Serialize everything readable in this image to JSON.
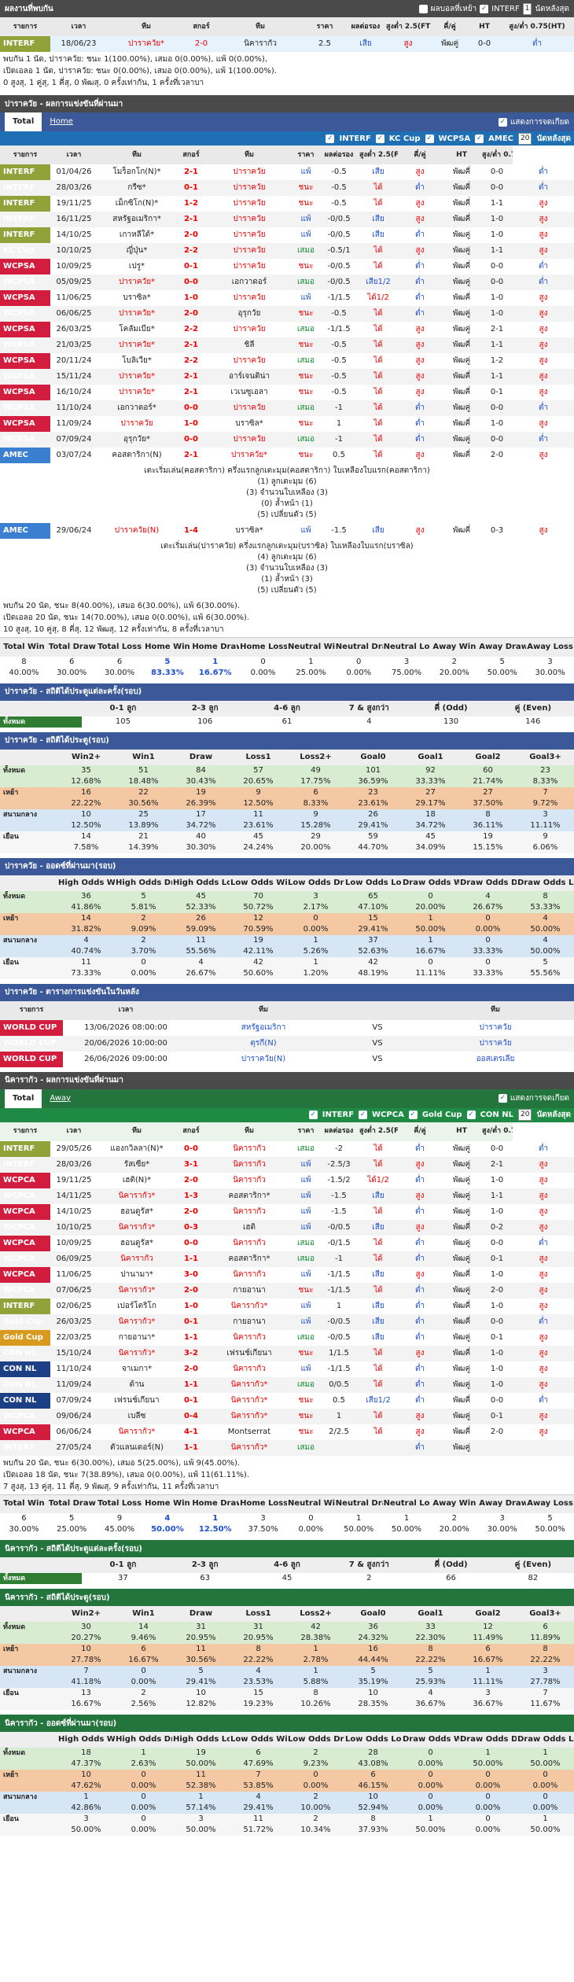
{
  "h2h": {
    "title": "ผลงานที่พบกัน",
    "options": [
      "ผลบอลที่เหย้า",
      "INTERF"
    ],
    "select": "1",
    "same": "นัดหลังสุด",
    "headers": [
      "รายการ",
      "เวลา",
      "ทีม",
      "สกอร์",
      "ทีม",
      "ราคา",
      "ผลต่อรอง",
      "สูงต่ำ 2.5(FT)",
      "คี่/คู่",
      "HT",
      "สูง/ต่ำ 0.75(HT)"
    ],
    "rows": [
      [
        "INTERF",
        "18/06/23",
        "ปาราควัย*",
        "2-0",
        "นิคารากัว",
        "2.5",
        "เสีย",
        "สูง",
        "พัฒคู่",
        "0-0",
        "ต่ำ"
      ]
    ],
    "summary": [
      "พบกัน 1 นัด, ปาราควัย: ชนะ 1(100.00%), เสมอ 0(0.00%), แพ้ 0(0.00%),",
      "เปิดเอลอ 1 นัด, ปาราควัย: ชนะ 0(0.00%), เสมอ 0(0.00%), แพ้ 1(100.00%).",
      "0 สูงสุ, 1 คู่สุ, 1 คี่สุ, 0 พัฒสุ, 0 ครั้งเท่ากัน, 1 ครั้งที่เวลาบา"
    ]
  },
  "home": {
    "bar": "ปาราควัย - ผลการแข่งขันที่ผ่านมา",
    "tab1": "Total",
    "tab2": "Home",
    "same_label": "แสดงการจดเกียด",
    "filters": [
      "INTERF",
      "KC Cup",
      "WCPSA",
      "AMEC"
    ],
    "filter_count": "20",
    "filter_last": "นัดหลังสุด",
    "headers": [
      "รายการ",
      "เวลา",
      "ทีม",
      "สกอร์",
      "ทีม",
      "ราคา",
      "ผลต่อรอง",
      "สูงต่ำ 2.5(FT)",
      "คี่/คู่",
      "HT",
      "สูง/ต่ำ 0.75(HT)"
    ],
    "rows": [
      [
        "INTERF",
        "01/04/26",
        "โมร็อกโก(N)*",
        "2-1",
        "ปาราควัย",
        "แพ้",
        "-0.5",
        "เสีย",
        "สูง",
        "พัฒคี่",
        "0-0",
        "ต่ำ"
      ],
      [
        "INTERF",
        "28/03/26",
        "กรีซ*",
        "0-1",
        "ปาราควัย",
        "ชนะ",
        "-0.5",
        "ได้",
        "ต่ำ",
        "พัฒคี่",
        "0-0",
        "ต่ำ"
      ],
      [
        "INTERF",
        "19/11/25",
        "เม็กซิโก(N)*",
        "1-2",
        "ปาราควัย",
        "ชนะ",
        "-0.5",
        "ได้",
        "สูง",
        "พัฒคี่",
        "1-1",
        "สูง"
      ],
      [
        "INTERF",
        "16/11/25",
        "สหรัฐอเมริกา*",
        "2-1",
        "ปาราควัย",
        "แพ้",
        "-0/0.5",
        "เสีย",
        "สูง",
        "พัฒคี่",
        "1-0",
        "สูง"
      ],
      [
        "INTERF",
        "14/10/25",
        "เกาหลีใต้*",
        "2-0",
        "ปาราควัย",
        "แพ้",
        "-0/0.5",
        "เสีย",
        "ต่ำ",
        "พัฒคู่",
        "1-0",
        "สูง"
      ],
      [
        "KC Cup",
        "10/10/25",
        "ญี่ปุ่น*",
        "2-2",
        "ปาราควัย",
        "เสมอ",
        "-0.5/1",
        "ได้",
        "สูง",
        "พัฒคู่",
        "1-1",
        "สูง"
      ],
      [
        "WCPSA",
        "10/09/25",
        "เปรู*",
        "0-1",
        "ปาราควัย",
        "ชนะ",
        "-0/0.5",
        "ได้",
        "ต่ำ",
        "พัฒคี่",
        "0-0",
        "ต่ำ"
      ],
      [
        "WCPSA",
        "05/09/25",
        "ปาราควัย*",
        "0-0",
        "เอกวาดอร์",
        "เสมอ",
        "-0/0.5",
        "เสีย1/2",
        "ต่ำ",
        "พัฒคู่",
        "0-0",
        "ต่ำ"
      ],
      [
        "WCPSA",
        "11/06/25",
        "บราซิล*",
        "1-0",
        "ปาราควัย",
        "แพ้",
        "-1/1.5",
        "ได้1/2",
        "ต่ำ",
        "พัฒคี่",
        "1-0",
        "สูง"
      ],
      [
        "WCPSA",
        "06/06/25",
        "ปาราควัย*",
        "2-0",
        "อุรุกวัย",
        "ชนะ",
        "-0.5",
        "ได้",
        "ต่ำ",
        "พัฒคู่",
        "1-0",
        "สูง"
      ],
      [
        "WCPSA",
        "26/03/25",
        "โคลัมเบีย*",
        "2-2",
        "ปาราควัย",
        "เสมอ",
        "-1/1.5",
        "ได้",
        "สูง",
        "พัฒคู่",
        "2-1",
        "สูง"
      ],
      [
        "WCPSA",
        "21/03/25",
        "ปาราควัย*",
        "2-1",
        "ชิลี",
        "ชนะ",
        "-0.5",
        "ได้",
        "สูง",
        "พัฒคี่",
        "1-1",
        "สูง"
      ],
      [
        "WCPSA",
        "20/11/24",
        "โบลิเวีย*",
        "2-2",
        "ปาราควัย",
        "เสมอ",
        "-0.5",
        "ได้",
        "สูง",
        "พัฒคู่",
        "1-2",
        "สูง"
      ],
      [
        "WCPSA",
        "15/11/24",
        "ปาราควัย*",
        "2-1",
        "อาร์เจนติน่า",
        "ชนะ",
        "-0.5",
        "ได้",
        "สูง",
        "พัฒคี่",
        "1-1",
        "สูง"
      ],
      [
        "WCPSA",
        "16/10/24",
        "ปาราควัย*",
        "2-1",
        "เวเนซูเอลา",
        "ชนะ",
        "-0.5",
        "ได้",
        "สูง",
        "พัฒคี่",
        "0-1",
        "สูง"
      ],
      [
        "WCPSA",
        "11/10/24",
        "เอกวาดอร์*",
        "0-0",
        "ปาราควัย",
        "เสมอ",
        "-1",
        "ได้",
        "ต่ำ",
        "พัฒคู่",
        "0-0",
        "ต่ำ"
      ],
      [
        "WCPSA",
        "11/09/24",
        "ปาราควัย",
        "1-0",
        "บราซิล*",
        "ชนะ",
        "1",
        "ได้",
        "ต่ำ",
        "พัฒคี่",
        "1-0",
        "สูง"
      ],
      [
        "WCPSA",
        "07/09/24",
        "อุรุกวัย*",
        "0-0",
        "ปาราควัย",
        "เสมอ",
        "-1",
        "ได้",
        "ต่ำ",
        "พัฒคู่",
        "0-0",
        "ต่ำ"
      ],
      [
        "AMEC",
        "03/07/24",
        "คอสตาริกา(N)",
        "2-1",
        "ปาราควัย*",
        "ชนะ",
        "0.5",
        "ได้",
        "สูง",
        "พัฒคี่",
        "2-0",
        "สูง"
      ]
    ],
    "amec_note": [
      "เตะเริ่มเล่น(คอสตาริกา) ครึ่งแรกลูกเตะมุม(คอสตาริกา) ใบเหลืองใบแรก(คอสตาริกา)",
      "(1) ลูกเตะมุม (6)",
      "(3) จำนวนใบเหลือง (3)",
      "(0) ล้ำหน้า (1)",
      "(5) เปลี่ยนตัว (5)"
    ],
    "row2": [
      "AMEC",
      "29/06/24",
      "ปาราควัย(N)",
      "1-4",
      "บราซิล*",
      "แพ้",
      "-1.5",
      "เสีย",
      "สูง",
      "พัฒคี่",
      "0-3",
      "สูง"
    ],
    "amec_note2": [
      "เตะเริ่มเล่น(ปาราควัย) ครึ่งแรกลูกเตะมุม(บราซิล) ใบเหลืองใบแรก(บราซิล)",
      "(4) ลูกเตะมุม (6)",
      "(3) จำนวนใบเหลือง (3)",
      "(1) ล้ำหน้า (3)",
      "(5) เปลี่ยนตัว (5)"
    ],
    "summary": [
      "พบกัน 20 นัด, ชนะ 8(40.00%), เสมอ 6(30.00%), แพ้ 6(30.00%).",
      "เปิดเอลอ 20 นัด, ชนะ 14(70.00%), เสมอ 0(0.00%), แพ้ 6(30.00%).",
      "10 สูงสุ, 10 คู่สุ, 8 คี่สุ, 12 พัฒสุ, 12 ครั้งเท่ากัน, 8 ครั้งที่เวลาบา"
    ],
    "twd_head": [
      "Total Win",
      "Total Draw",
      "Total Loss",
      "Home Win",
      "Home Draw",
      "Home Loss",
      "Neutral Win",
      "Neutral Draw",
      "Neutral Loss",
      "Away Win",
      "Away Draw",
      "Away Loss"
    ],
    "twd_vals": [
      "8",
      "6",
      "6",
      "5",
      "1",
      "0",
      "1",
      "0",
      "3",
      "2",
      "5",
      "3"
    ],
    "twd_pct": [
      "40.00%",
      "30.00%",
      "30.00%",
      "83.33%",
      "16.67%",
      "0.00%",
      "25.00%",
      "0.00%",
      "75.00%",
      "20.00%",
      "50.00%",
      "30.00%"
    ],
    "goals_bar": "ปาราควัย - สถิติได้ประตูแต่ละครั้ง(รอบ)",
    "goals_head": [
      "",
      "0-1 ลูก",
      "2-3 ลูก",
      "4-6 ลูก",
      "7 & สูงกว่า",
      "คี่ (Odd)",
      "คู่ (Even)"
    ],
    "goals_vals": [
      "ทั้งหมด",
      "105",
      "106",
      "61",
      "4",
      "130",
      "146"
    ],
    "stat_bar": "ปาราควัย - สถิติได้ประตู(รอบ)",
    "stat_head": [
      "",
      "Win2+",
      "Win1",
      "Draw",
      "Loss1",
      "Loss2+",
      "Goal0",
      "Goal1",
      "Goal2",
      "Goal3+"
    ],
    "stat_rows": [
      [
        "ทั้งหมด",
        "35",
        "51",
        "84",
        "57",
        "49",
        "101",
        "92",
        "60",
        "23"
      ],
      [
        "",
        "12.68%",
        "18.48%",
        "30.43%",
        "20.65%",
        "17.75%",
        "36.59%",
        "33.33%",
        "21.74%",
        "8.33%"
      ],
      [
        "เหย้า",
        "16",
        "22",
        "19",
        "9",
        "6",
        "23",
        "27",
        "27",
        "7"
      ],
      [
        "",
        "22.22%",
        "30.56%",
        "26.39%",
        "12.50%",
        "8.33%",
        "23.61%",
        "29.17%",
        "37.50%",
        "9.72%"
      ],
      [
        "สนามกลาง",
        "10",
        "25",
        "17",
        "11",
        "9",
        "26",
        "18",
        "8",
        "3"
      ],
      [
        "",
        "12.50%",
        "13.89%",
        "34.72%",
        "23.61%",
        "15.28%",
        "29.41%",
        "34.72%",
        "36.11%",
        "11.11%"
      ],
      [
        "เยือน",
        "14",
        "21",
        "40",
        "45",
        "29",
        "59",
        "45",
        "19",
        "9"
      ],
      [
        "",
        "7.58%",
        "14.39%",
        "30.30%",
        "24.24%",
        "20.00%",
        "44.70%",
        "34.09%",
        "15.15%",
        "6.06%"
      ]
    ],
    "odds_bar": "ปาราควัย - ออดซ์ที่ผ่านมา(รอบ)",
    "odds_head": [
      "",
      "High Odds Win",
      "High Odds Draw",
      "High Odds Loss",
      "Low Odds Win",
      "Low Odds Draw",
      "Low Odds Loss",
      "Draw Odds Win",
      "Draw Odds Draw",
      "Draw Odds Loss"
    ],
    "odds_rows": [
      [
        "ทั้งหมด",
        "36",
        "5",
        "45",
        "70",
        "3",
        "65",
        "0",
        "4",
        "8"
      ],
      [
        "",
        "41.86%",
        "5.81%",
        "52.33%",
        "50.72%",
        "2.17%",
        "47.10%",
        "20.00%",
        "26.67%",
        "53.33%"
      ],
      [
        "เหย้า",
        "14",
        "2",
        "26",
        "12",
        "0",
        "15",
        "1",
        "0",
        "4"
      ],
      [
        "",
        "31.82%",
        "9.09%",
        "59.09%",
        "70.59%",
        "0.00%",
        "29.41%",
        "50.00%",
        "0.00%",
        "50.00%"
      ],
      [
        "สนามกลาง",
        "4",
        "2",
        "11",
        "19",
        "1",
        "37",
        "1",
        "0",
        "4"
      ],
      [
        "",
        "40.74%",
        "3.70%",
        "55.56%",
        "42.11%",
        "5.26%",
        "52.63%",
        "16.67%",
        "33.33%",
        "50.00%"
      ],
      [
        "เยือน",
        "11",
        "0",
        "4",
        "42",
        "1",
        "42",
        "0",
        "0",
        "5"
      ],
      [
        "",
        "73.33%",
        "0.00%",
        "26.67%",
        "50.60%",
        "1.20%",
        "48.19%",
        "11.11%",
        "33.33%",
        "55.56%"
      ]
    ],
    "fix_bar": "ปาราควัย - ตารางการแข่งขันในวันหลัง",
    "fix_head": [
      "รายการ",
      "เวลา",
      "ทีม",
      "",
      "ทีม"
    ],
    "fix_rows": [
      [
        "WORLD CUP",
        "13/06/2026 08:00:00",
        "สหรัฐอเมริกา",
        "VS",
        "ปาราควัย"
      ],
      [
        "WORLD CUP",
        "20/06/2026 10:00:00",
        "ตุรกี(N)",
        "VS",
        "ปาราควัย"
      ],
      [
        "WORLD CUP",
        "26/06/2026 09:00:00",
        "ปาราควัย(N)",
        "VS",
        "ออสเตรเลีย"
      ]
    ]
  },
  "away": {
    "bar": "นิคารากัว - ผลการแข่งขันที่ผ่านมา",
    "tab1": "Total",
    "tab2": "Away",
    "same_label": "แสดงการจดเกียด",
    "filters": [
      "INTERF",
      "WCPCA",
      "Gold Cup",
      "CON NL"
    ],
    "filter_count": "20",
    "filter_last": "นัดหลังสุด",
    "rows": [
      [
        "INTERF",
        "29/05/26",
        "แองกวิลลา(N)*",
        "0-0",
        "นิคารากัว",
        "เสมอ",
        "-2",
        "ได้",
        "ต่ำ",
        "พัฒคู่",
        "0-0",
        "ต่ำ"
      ],
      [
        "INTERF",
        "28/03/26",
        "รัสเซีย*",
        "3-1",
        "นิคารากัว",
        "แพ้",
        "-2.5/3",
        "ได้",
        "สูง",
        "พัฒคู่",
        "2-1",
        "สูง"
      ],
      [
        "WCPCA",
        "19/11/25",
        "เฮติ(N)*",
        "2-0",
        "นิคารากัว",
        "แพ้",
        "-1.5/2",
        "ได้1/2",
        "ต่ำ",
        "พัฒคู่",
        "1-0",
        "สูง"
      ],
      [
        "WCPCA",
        "14/11/25",
        "นิคารากัว*",
        "1-3",
        "คอสตาริกา*",
        "แพ้",
        "-1.5",
        "เสีย",
        "สูง",
        "พัฒคู่",
        "1-1",
        "สูง"
      ],
      [
        "WCPCA",
        "14/10/25",
        "ฮอนดูรัส*",
        "2-0",
        "นิคารากัว",
        "แพ้",
        "-1.5",
        "ได้",
        "ต่ำ",
        "พัฒคู่",
        "1-0",
        "สูง"
      ],
      [
        "WCPCA",
        "10/10/25",
        "นิคารากัว*",
        "0-3",
        "เฮติ",
        "แพ้",
        "-0/0.5",
        "เสีย",
        "สูง",
        "พัฒคี่",
        "0-2",
        "สูง"
      ],
      [
        "WCPCA",
        "10/09/25",
        "ฮอนดูรัส*",
        "0-0",
        "นิคารากัว",
        "เสมอ",
        "-0/1.5",
        "ได้",
        "ต่ำ",
        "พัฒคู่",
        "0-0",
        "ต่ำ"
      ],
      [
        "WCPCA",
        "06/09/25",
        "นิคารากัว",
        "1-1",
        "คอสตาริกา*",
        "เสมอ",
        "-1",
        "ได้",
        "ต่ำ",
        "พัฒคู่",
        "0-1",
        "สูง"
      ],
      [
        "WCPCA",
        "11/06/25",
        "ปานามา*",
        "3-0",
        "นิคารากัว",
        "แพ้",
        "-1/1.5",
        "เสีย",
        "สูง",
        "พัฒคี่",
        "1-0",
        "สูง"
      ],
      [
        "WCPCA",
        "07/06/25",
        "นิคารากัว*",
        "2-0",
        "กายอานา",
        "ชนะ",
        "-1/1.5",
        "ได้",
        "ต่ำ",
        "พัฒคู่",
        "2-0",
        "สูง"
      ],
      [
        "INTERF",
        "02/06/25",
        "เปอร์โตริโก",
        "1-0",
        "นิคารากัว*",
        "แพ้",
        "1",
        "เสีย",
        "ต่ำ",
        "พัฒคี่",
        "1-0",
        "สูง"
      ],
      [
        "Gold Cup",
        "26/03/25",
        "นิคารากัว*",
        "0-1",
        "กายอานา",
        "แพ้",
        "-0/0.5",
        "เสีย",
        "ต่ำ",
        "พัฒคี่",
        "0-0",
        "ต่ำ"
      ],
      [
        "Gold Cup",
        "22/03/25",
        "กายอานา*",
        "1-1",
        "นิคารากัว",
        "เสมอ",
        "-0/0.5",
        "เสีย",
        "ต่ำ",
        "พัฒคู่",
        "0-1",
        "สูง"
      ],
      [
        "CON NL",
        "15/10/24",
        "นิคารากัว*",
        "3-2",
        "เฟรนช์เกียนา",
        "ชนะ",
        "1/1.5",
        "ได้",
        "สูง",
        "พัฒคี่",
        "1-0",
        "สูง"
      ],
      [
        "CON NL",
        "11/10/24",
        "จาเมกา*",
        "2-0",
        "นิคารากัว",
        "แพ้",
        "-1/1.5",
        "ได้",
        "ต่ำ",
        "พัฒคู่",
        "1-0",
        "สูง"
      ],
      [
        "CON NL",
        "11/09/24",
        "ต้าน",
        "1-1",
        "นิคารากัว*",
        "เสมอ",
        "0/0.5",
        "ได้",
        "ต่ำ",
        "พัฒคู่",
        "1-0",
        "สูง"
      ],
      [
        "CON NL",
        "07/09/24",
        "เฟรนช์เกียนา",
        "0-1",
        "นิคารากัว*",
        "ชนะ",
        "0.5",
        "เสีย1/2",
        "ต่ำ",
        "พัฒคี่",
        "0-0",
        "ต่ำ"
      ],
      [
        "WCPCA",
        "09/06/24",
        "เบลีซ",
        "0-4",
        "นิคารากัว*",
        "ชนะ",
        "1",
        "ได้",
        "สูง",
        "พัฒคู่",
        "0-1",
        "สูง"
      ],
      [
        "WCPCA",
        "06/06/24",
        "นิคารากัว*",
        "4-1",
        "Montserrat",
        "ชนะ",
        "2/2.5",
        "ได้",
        "สูง",
        "พัฒคี่",
        "2-0",
        "สูง"
      ],
      [
        "INTERF",
        "27/05/24",
        "ตัวแลนเดอร์(N)",
        "1-1",
        "นิคารากัว*",
        "เสมอ",
        "",
        "",
        "ต่ำ",
        "พัฒคู่",
        "",
        ""
      ]
    ],
    "summary": [
      "พบกัน 20 นัด, ชนะ 6(30.00%), เสมอ 5(25.00%), แพ้ 9(45.00%).",
      "เปิดเอลอ 18 นัด, ชนะ 7(38.89%), เสมอ 0(0.00%), แพ้ 11(61.11%).",
      "7 สูงสุ, 13 คู่สุ, 11 คี่สุ, 9 พัฒสุ, 9 ครั้งเท่ากัน, 11 ครั้งที่เวลาบา"
    ],
    "twd_vals": [
      "6",
      "5",
      "9",
      "4",
      "1",
      "3",
      "0",
      "1",
      "1",
      "2",
      "3",
      "5"
    ],
    "twd_pct": [
      "30.00%",
      "25.00%",
      "45.00%",
      "50.00%",
      "12.50%",
      "37.50%",
      "0.00%",
      "50.00%",
      "50.00%",
      "20.00%",
      "30.00%",
      "50.00%"
    ],
    "goals_bar": "นิคารากัว - สถิติได้ประตูแต่ละครั้ง(รอบ)",
    "goals_vals": [
      "ทั้งหมด",
      "37",
      "63",
      "45",
      "2",
      "66",
      "82"
    ],
    "stat_bar": "นิคารากัว - สถิติได้ประตู(รอบ)",
    "stat_rows": [
      [
        "ทั้งหมด",
        "30",
        "14",
        "31",
        "31",
        "42",
        "36",
        "33",
        "12",
        "6"
      ],
      [
        "",
        "20.27%",
        "9.46%",
        "20.95%",
        "20.95%",
        "28.38%",
        "24.32%",
        "22.30%",
        "11.49%",
        "11.89%"
      ],
      [
        "เหย้า",
        "10",
        "6",
        "11",
        "8",
        "1",
        "16",
        "8",
        "6",
        "8"
      ],
      [
        "",
        "27.78%",
        "16.67%",
        "30.56%",
        "22.22%",
        "2.78%",
        "44.44%",
        "22.22%",
        "16.67%",
        "22.22%"
      ],
      [
        "สนามกลาง",
        "7",
        "0",
        "5",
        "4",
        "1",
        "5",
        "5",
        "1",
        "3"
      ],
      [
        "",
        "41.18%",
        "0.00%",
        "29.41%",
        "23.53%",
        "5.88%",
        "35.19%",
        "25.93%",
        "11.11%",
        "27.78%"
      ],
      [
        "เยือน",
        "13",
        "2",
        "10",
        "15",
        "8",
        "10",
        "4",
        "3",
        "7"
      ],
      [
        "",
        "16.67%",
        "2.56%",
        "12.82%",
        "19.23%",
        "10.26%",
        "28.35%",
        "36.67%",
        "36.67%",
        "11.67%"
      ]
    ],
    "odds_bar": "นิคารากัว - ออดซ์ที่ผ่านมา(รอบ)",
    "odds_rows": [
      [
        "ทั้งหมด",
        "18",
        "1",
        "19",
        "6",
        "2",
        "28",
        "0",
        "1",
        "1"
      ],
      [
        "",
        "47.37%",
        "2.63%",
        "50.00%",
        "47.69%",
        "9.23%",
        "43.08%",
        "0.00%",
        "50.00%",
        "50.00%"
      ],
      [
        "เหย้า",
        "10",
        "0",
        "11",
        "7",
        "0",
        "6",
        "0",
        "0",
        "0"
      ],
      [
        "",
        "47.62%",
        "0.00%",
        "52.38%",
        "53.85%",
        "0.00%",
        "46.15%",
        "0.00%",
        "0.00%",
        "0.00%"
      ],
      [
        "สนามกลาง",
        "1",
        "0",
        "1",
        "4",
        "2",
        "10",
        "0",
        "0",
        "0"
      ],
      [
        "",
        "42.86%",
        "0.00%",
        "57.14%",
        "29.41%",
        "10.00%",
        "52.94%",
        "0.00%",
        "0.00%",
        "0.00%"
      ],
      [
        "เยือน",
        "3",
        "0",
        "3",
        "11",
        "2",
        "8",
        "1",
        "0",
        "1"
      ],
      [
        "",
        "50.00%",
        "0.00%",
        "50.00%",
        "51.72%",
        "10.34%",
        "37.93%",
        "50.00%",
        "0.00%",
        "50.00%"
      ]
    ]
  },
  "colors": {
    "home_bar": "#3b5998",
    "away_bar": "#24743e",
    "win": "#e00000",
    "loss": "#1d4fd1"
  }
}
